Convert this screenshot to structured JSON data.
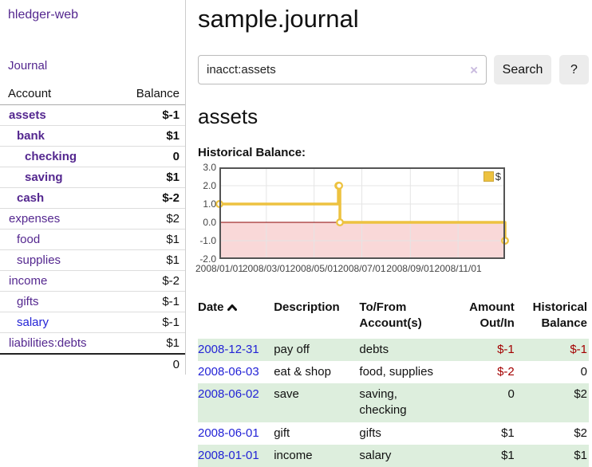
{
  "app": {
    "brand": "hledger-web",
    "nav_journal": "Journal"
  },
  "colors": {
    "link_purple": "#54278f",
    "link_blue": "#2323d6",
    "negative_strong": "#a40000",
    "negative_soft": "#c0737f",
    "row_stripe_green": "#ddeedd",
    "chart_line": "#edc240",
    "chart_negative_fill": "#f9d8d8",
    "chart_zero_line": "#8b0000",
    "chart_border": "#545454"
  },
  "sidebar": {
    "columns": {
      "account": "Account",
      "balance": "Balance"
    },
    "accounts": [
      {
        "name": "assets",
        "balance": "$-1",
        "level": 1,
        "bold": true,
        "link_color": "purple",
        "balance_class": "neg"
      },
      {
        "name": "bank",
        "balance": "$1",
        "level": 2,
        "bold": true,
        "link_color": "purple",
        "balance_class": ""
      },
      {
        "name": "checking",
        "balance": "0",
        "level": 3,
        "bold": true,
        "link_color": "purple",
        "balance_class": ""
      },
      {
        "name": "saving",
        "balance": "$1",
        "level": 3,
        "bold": true,
        "link_color": "purple",
        "balance_class": ""
      },
      {
        "name": "cash",
        "balance": "$-2",
        "level": 2,
        "bold": true,
        "link_color": "purple",
        "balance_class": "neg"
      },
      {
        "name": "expenses",
        "balance": "$2",
        "level": 1,
        "bold": false,
        "link_color": "purple",
        "balance_class": ""
      },
      {
        "name": "food",
        "balance": "$1",
        "level": 2,
        "bold": false,
        "link_color": "purple",
        "balance_class": ""
      },
      {
        "name": "supplies",
        "balance": "$1",
        "level": 2,
        "bold": false,
        "link_color": "purple",
        "balance_class": ""
      },
      {
        "name": "income",
        "balance": "$-2",
        "level": 1,
        "bold": false,
        "link_color": "purple",
        "balance_class": "neg-soft"
      },
      {
        "name": "gifts",
        "balance": "$-1",
        "level": 2,
        "bold": false,
        "link_color": "purple",
        "balance_class": "neg-soft"
      },
      {
        "name": "salary",
        "balance": "$-1",
        "level": 2,
        "bold": false,
        "link_color": "blue",
        "balance_class": "neg-soft"
      },
      {
        "name": "liabilities:debts",
        "balance": "$1",
        "level": 1,
        "bold": false,
        "link_color": "purple",
        "balance_class": ""
      }
    ],
    "total": "0"
  },
  "main": {
    "title": "sample.journal",
    "search": {
      "value": "inacct:assets",
      "clear_label": "×",
      "button_label": "Search",
      "help_label": "?"
    },
    "account_heading": "assets",
    "chart_heading": "Historical Balance:"
  },
  "chart_data": {
    "type": "line",
    "step": true,
    "title": "Historical Balance:",
    "series": [
      {
        "name": "$",
        "points": [
          [
            "2008-01-01",
            1
          ],
          [
            "2008-06-01",
            2
          ],
          [
            "2008-06-02",
            2
          ],
          [
            "2008-06-03",
            0
          ],
          [
            "2008-12-31",
            -1
          ]
        ]
      }
    ],
    "x_range": [
      "2008-01-01",
      "2008-12-31"
    ],
    "x_ticks": [
      "2008/01/01",
      "2008/03/01",
      "2008/05/01",
      "2008/07/01",
      "2008/09/01",
      "2008/11/01"
    ],
    "y_ticks": [
      "3.0",
      "2.0",
      "1.0",
      "0.0",
      "-1.0",
      "-2.0"
    ],
    "ylim": [
      -2,
      3
    ],
    "grid": true,
    "legend_position": "top-right",
    "negative_region_shaded": true
  },
  "register": {
    "headers": {
      "date": "Date",
      "description": "Description",
      "accounts": "To/From Account(s)",
      "amount": "Amount Out/In",
      "balance": "Historical Balance"
    },
    "sort": {
      "column": "date",
      "direction": "asc"
    },
    "rows": [
      {
        "date": "2008-12-31",
        "description": "pay off",
        "accounts": "debts",
        "amount": "$-1",
        "balance": "$-1",
        "amount_class": "neg",
        "balance_class": "neg"
      },
      {
        "date": "2008-06-03",
        "description": "eat & shop",
        "accounts": "food, supplies",
        "amount": "$-2",
        "balance": "0",
        "amount_class": "neg",
        "balance_class": ""
      },
      {
        "date": "2008-06-02",
        "description": "save",
        "accounts": "saving, checking",
        "amount": "0",
        "balance": "$2",
        "amount_class": "",
        "balance_class": ""
      },
      {
        "date": "2008-06-01",
        "description": "gift",
        "accounts": "gifts",
        "amount": "$1",
        "balance": "$2",
        "amount_class": "",
        "balance_class": ""
      },
      {
        "date": "2008-01-01",
        "description": "income",
        "accounts": "salary",
        "amount": "$1",
        "balance": "$1",
        "amount_class": "",
        "balance_class": ""
      }
    ]
  }
}
